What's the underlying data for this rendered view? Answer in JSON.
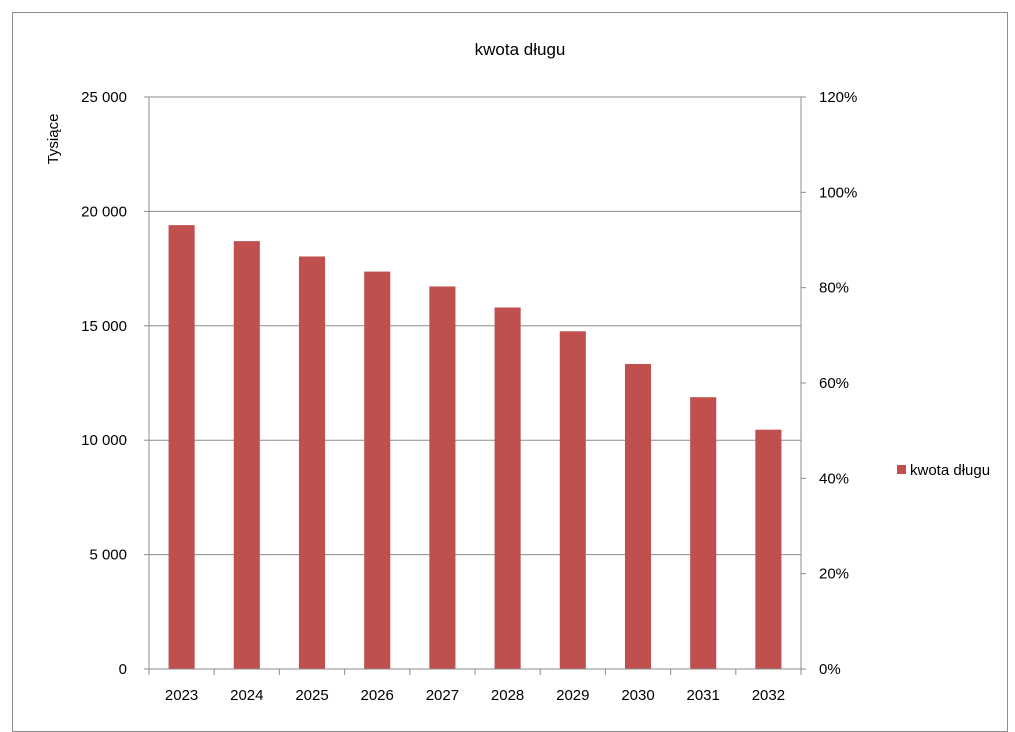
{
  "chart_data": {
    "type": "bar",
    "title": "kwota długu",
    "ylabel": "Tysiące",
    "categories": [
      "2023",
      "2024",
      "2025",
      "2026",
      "2027",
      "2028",
      "2029",
      "2030",
      "2031",
      "2032"
    ],
    "series": [
      {
        "name": "kwota długu",
        "values": [
          19400,
          18700,
          18030,
          17370,
          16720,
          15800,
          14760,
          13330,
          11880,
          10460
        ]
      }
    ],
    "ylim": [
      0,
      25000
    ],
    "y_ticks": [
      "0",
      "5 000",
      "10 000",
      "15 000",
      "20 000",
      "25 000"
    ],
    "y2lim": [
      0,
      1.2
    ],
    "y2_ticks": [
      "0%",
      "20%",
      "40%",
      "60%",
      "80%",
      "100%",
      "120%"
    ],
    "grid": true,
    "legend_position": "right",
    "bar_color": "#c0504d"
  }
}
